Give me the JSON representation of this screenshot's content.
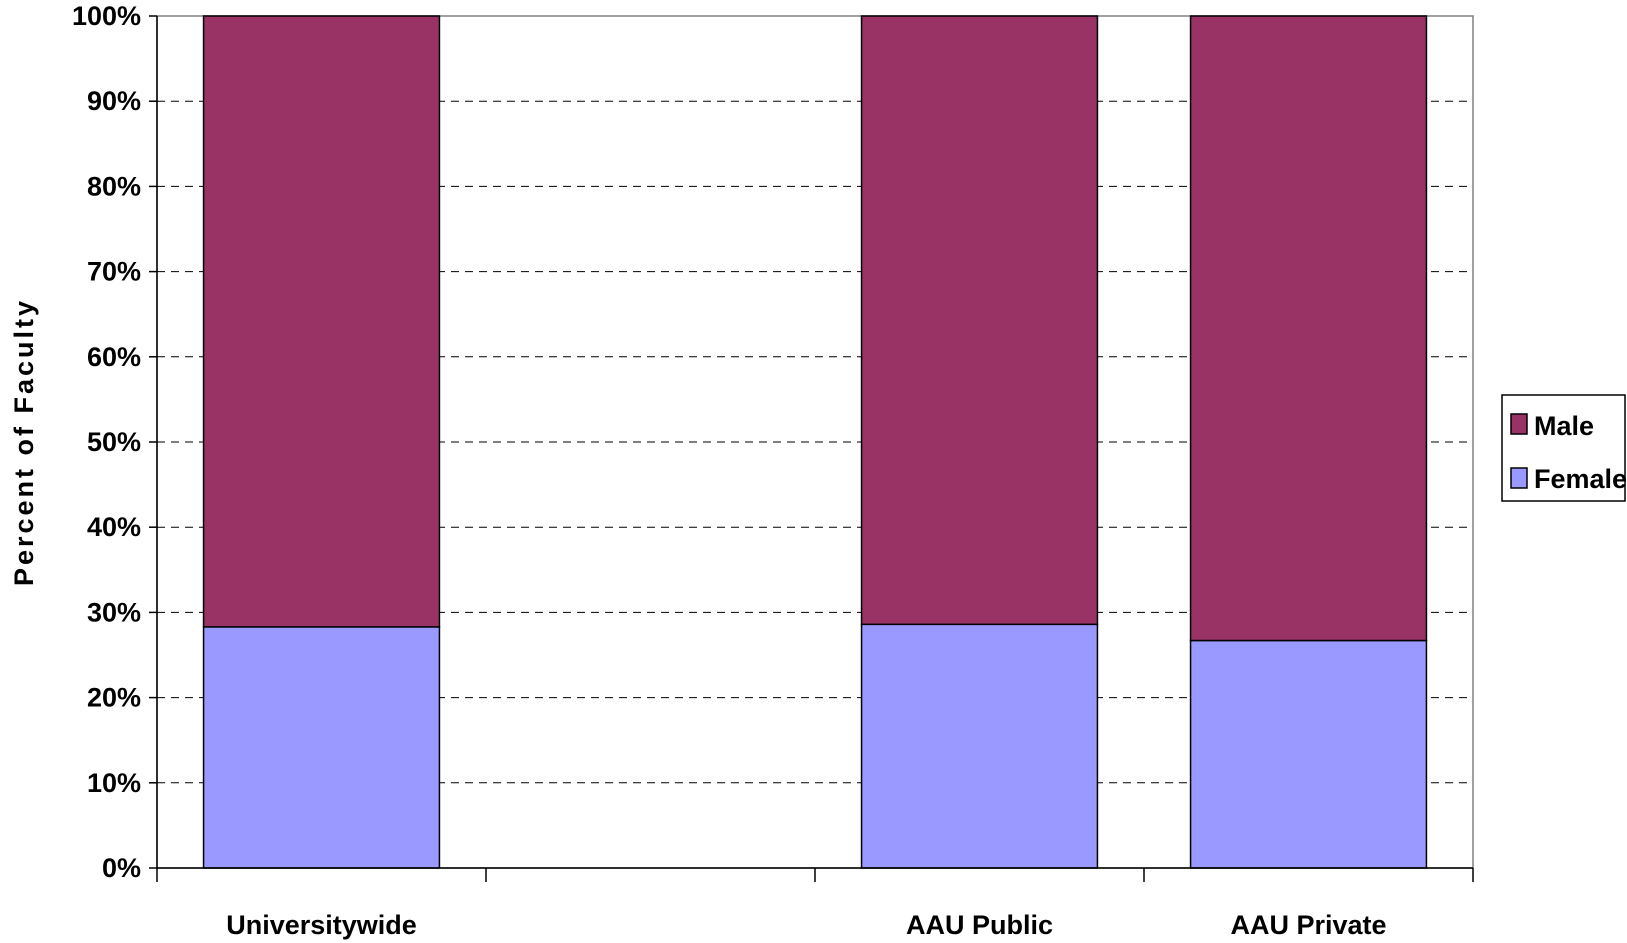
{
  "chart_data": {
    "type": "bar",
    "stacked": true,
    "categories": [
      "Universitywide",
      "",
      "AAU Public",
      "AAU Private"
    ],
    "series": [
      {
        "name": "Female",
        "values": [
          28.3,
          null,
          28.6,
          26.7
        ],
        "color": "#9999FF"
      },
      {
        "name": "Male",
        "values": [
          71.7,
          null,
          71.4,
          73.3
        ],
        "color": "#993366"
      }
    ],
    "title": "",
    "xlabel": "",
    "ylabel": "Percent of Faculty",
    "ylim": [
      0,
      100
    ],
    "yticks": [
      "0%",
      "10%",
      "20%",
      "30%",
      "40%",
      "50%",
      "60%",
      "70%",
      "80%",
      "90%",
      "100%"
    ],
    "grid": true,
    "legend": {
      "position": "right",
      "entries": [
        "Male",
        "Female"
      ]
    }
  }
}
